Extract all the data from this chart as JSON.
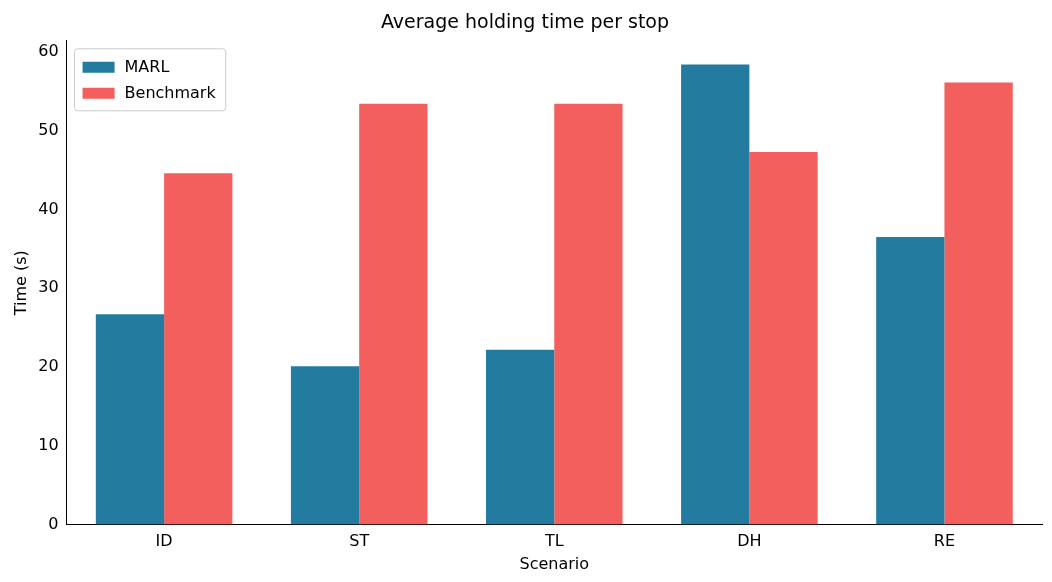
{
  "chart_data": {
    "type": "bar",
    "title": "Average holding time per stop",
    "xlabel": "Scenario",
    "ylabel": "Time (s)",
    "categories": [
      "ID",
      "ST",
      "TL",
      "DH",
      "RE"
    ],
    "series": [
      {
        "name": "MARL",
        "color": "#247ba0",
        "values": [
          26.7,
          20.1,
          22.2,
          58.4,
          36.5
        ]
      },
      {
        "name": "Benchmark",
        "color": "#f25f5c",
        "values": [
          44.6,
          53.4,
          53.4,
          47.3,
          56.1
        ]
      }
    ],
    "ylim": [
      0,
      61.4
    ],
    "yticks": [
      0,
      10,
      20,
      30,
      40,
      50,
      60
    ],
    "grid": false,
    "legend": "top left"
  }
}
